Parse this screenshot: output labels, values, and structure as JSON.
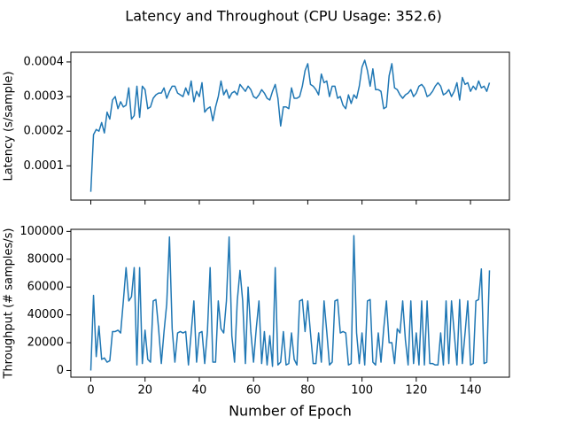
{
  "title": "Latency and Throughout (CPU Usage: 352.6)",
  "chart_data": [
    {
      "type": "line",
      "ylabel": "Latency (s/sample)",
      "color": "#1f77b4",
      "xlim": [
        -7.35,
        154.35
      ],
      "ylim": [
        1e-06,
        0.000428
      ],
      "xticks": [
        0,
        20,
        40,
        60,
        80,
        100,
        120,
        140
      ],
      "yticks": [
        0.0001,
        0.0002,
        0.0003,
        0.0004
      ],
      "x": [
        0,
        1,
        2,
        3,
        4,
        5,
        6,
        7,
        8,
        9,
        10,
        11,
        12,
        13,
        14,
        15,
        16,
        17,
        18,
        19,
        20,
        21,
        22,
        23,
        24,
        25,
        26,
        27,
        28,
        29,
        30,
        31,
        32,
        33,
        34,
        35,
        36,
        37,
        38,
        39,
        40,
        41,
        42,
        43,
        44,
        45,
        46,
        47,
        48,
        49,
        50,
        51,
        52,
        53,
        54,
        55,
        56,
        57,
        58,
        59,
        60,
        61,
        62,
        63,
        64,
        65,
        66,
        67,
        68,
        69,
        70,
        71,
        72,
        73,
        74,
        75,
        76,
        77,
        78,
        79,
        80,
        81,
        82,
        83,
        84,
        85,
        86,
        87,
        88,
        89,
        90,
        91,
        92,
        93,
        94,
        95,
        96,
        97,
        98,
        99,
        100,
        101,
        102,
        103,
        104,
        105,
        106,
        107,
        108,
        109,
        110,
        111,
        112,
        113,
        114,
        115,
        116,
        117,
        118,
        119,
        120,
        121,
        122,
        123,
        124,
        125,
        126,
        127,
        128,
        129,
        130,
        131,
        132,
        133,
        134,
        135,
        136,
        137,
        138,
        139,
        140,
        141,
        142,
        143,
        144,
        145,
        146,
        147
      ],
      "values": [
        2.5e-05,
        0.00019,
        0.000205,
        0.0002,
        0.000225,
        0.000195,
        0.000255,
        0.000235,
        0.00029,
        0.0003,
        0.000265,
        0.000285,
        0.00027,
        0.000275,
        0.000325,
        0.000235,
        0.000245,
        0.00033,
        0.00024,
        0.00033,
        0.00032,
        0.000265,
        0.00027,
        0.000295,
        0.000305,
        0.00031,
        0.00031,
        0.000325,
        0.000295,
        0.000315,
        0.00033,
        0.00033,
        0.00031,
        0.000305,
        0.0003,
        0.000325,
        0.000305,
        0.000345,
        0.000285,
        0.000315,
        0.0003,
        0.00034,
        0.000255,
        0.000265,
        0.00027,
        0.00023,
        0.00027,
        0.0003,
        0.000345,
        0.000305,
        0.00032,
        0.000295,
        0.00031,
        0.000315,
        0.000305,
        0.000335,
        0.000325,
        0.000315,
        0.00033,
        0.00032,
        0.0003,
        0.000295,
        0.000305,
        0.00032,
        0.00031,
        0.000295,
        0.00029,
        0.000315,
        0.000335,
        0.000295,
        0.000215,
        0.00027,
        0.00027,
        0.000265,
        0.000325,
        0.000295,
        0.000295,
        0.0003,
        0.00033,
        0.000375,
        0.000395,
        0.000335,
        0.00033,
        0.00032,
        0.000305,
        0.000365,
        0.00034,
        0.000345,
        0.0003,
        0.00033,
        0.00033,
        0.000295,
        0.0003,
        0.000275,
        0.000265,
        0.000305,
        0.00028,
        0.000305,
        0.000295,
        0.00033,
        0.000385,
        0.000405,
        0.000375,
        0.00033,
        0.00038,
        0.00032,
        0.00032,
        0.000315,
        0.000265,
        0.00027,
        0.00036,
        0.000395,
        0.000325,
        0.00032,
        0.000305,
        0.000295,
        0.000305,
        0.00031,
        0.00032,
        0.0003,
        0.00031,
        0.00033,
        0.000335,
        0.000325,
        0.0003,
        0.000305,
        0.000315,
        0.00033,
        0.00034,
        0.00033,
        0.000305,
        0.00031,
        0.00032,
        0.0003,
        0.000315,
        0.00034,
        0.00029,
        0.000355,
        0.000335,
        0.00034,
        0.000315,
        0.00033,
        0.00032,
        0.000345,
        0.000325,
        0.00033,
        0.000315,
        0.00034
      ]
    },
    {
      "type": "line",
      "ylabel": "Throughput (# samples/s)",
      "xlabel": "Number of Epoch",
      "color": "#1f77b4",
      "xlim": [
        -7.35,
        154.35
      ],
      "ylim": [
        -4800,
        101500
      ],
      "xticks": [
        0,
        20,
        40,
        60,
        80,
        100,
        120,
        140
      ],
      "yticks": [
        0,
        20000,
        40000,
        60000,
        80000,
        100000
      ],
      "x": [
        0,
        1,
        2,
        3,
        4,
        5,
        6,
        7,
        8,
        9,
        10,
        11,
        12,
        13,
        14,
        15,
        16,
        17,
        18,
        19,
        20,
        21,
        22,
        23,
        24,
        25,
        26,
        27,
        28,
        29,
        30,
        31,
        32,
        33,
        34,
        35,
        36,
        37,
        38,
        39,
        40,
        41,
        42,
        43,
        44,
        45,
        46,
        47,
        48,
        49,
        50,
        51,
        52,
        53,
        54,
        55,
        56,
        57,
        58,
        59,
        60,
        61,
        62,
        63,
        64,
        65,
        66,
        67,
        68,
        69,
        70,
        71,
        72,
        73,
        74,
        75,
        76,
        77,
        78,
        79,
        80,
        81,
        82,
        83,
        84,
        85,
        86,
        87,
        88,
        89,
        90,
        91,
        92,
        93,
        94,
        95,
        96,
        97,
        98,
        99,
        100,
        101,
        102,
        103,
        104,
        105,
        106,
        107,
        108,
        109,
        110,
        111,
        112,
        113,
        114,
        115,
        116,
        117,
        118,
        119,
        120,
        121,
        122,
        123,
        124,
        125,
        126,
        127,
        128,
        129,
        130,
        131,
        132,
        133,
        134,
        135,
        136,
        137,
        138,
        139,
        140,
        141,
        142,
        143,
        144,
        145,
        146,
        147
      ],
      "values": [
        0,
        54000,
        10000,
        32000,
        8000,
        9000,
        6000,
        7000,
        28000,
        28000,
        29000,
        27000,
        50000,
        74000,
        50000,
        53000,
        74000,
        4000,
        74000,
        5000,
        29000,
        8000,
        6000,
        50000,
        51000,
        30000,
        5000,
        28000,
        48000,
        96000,
        30000,
        6000,
        27000,
        28000,
        27000,
        28000,
        4000,
        27000,
        50000,
        6000,
        27000,
        28000,
        5000,
        28000,
        74000,
        6000,
        6000,
        50000,
        30000,
        27000,
        50000,
        96000,
        25000,
        6000,
        50000,
        72000,
        50000,
        5000,
        60000,
        28000,
        6000,
        30000,
        50000,
        5000,
        28000,
        4000,
        25000,
        3000,
        74000,
        4000,
        6000,
        28000,
        4000,
        5000,
        27000,
        8000,
        4000,
        50000,
        51000,
        28000,
        50000,
        27000,
        5000,
        5000,
        27000,
        6000,
        50000,
        28000,
        4000,
        6000,
        50000,
        51000,
        27000,
        28000,
        27000,
        4000,
        5000,
        97000,
        27000,
        5000,
        27000,
        4000,
        50000,
        51000,
        6000,
        4000,
        27000,
        6000,
        30000,
        50000,
        20000,
        20000,
        5000,
        30000,
        27000,
        50000,
        22000,
        4000,
        50000,
        5000,
        27000,
        4000,
        50000,
        4000,
        50000,
        5000,
        5000,
        4000,
        4000,
        27000,
        4000,
        50000,
        5000,
        50000,
        27000,
        4000,
        51000,
        5000,
        27000,
        50000,
        4000,
        5000,
        50000,
        51000,
        73000,
        5000,
        6000,
        72000
      ]
    }
  ]
}
